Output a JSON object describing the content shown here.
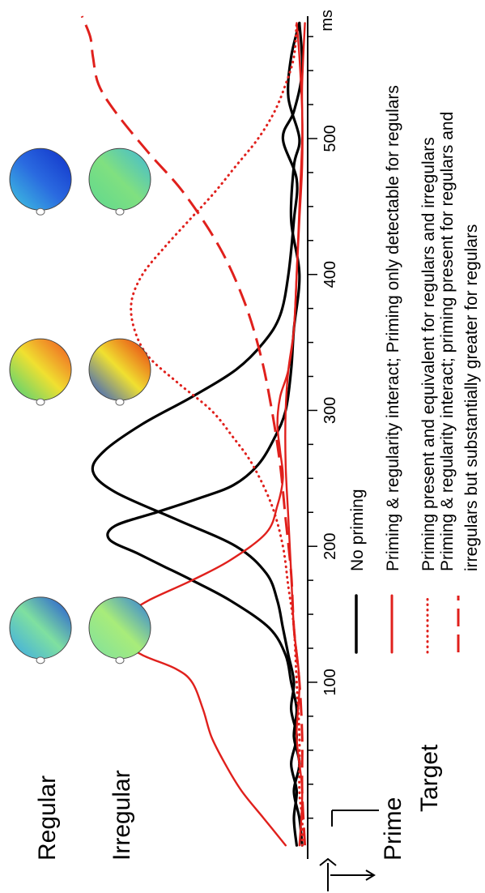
{
  "chart_data": {
    "type": "line",
    "xlabel": "ms",
    "x_ticks": [
      100,
      200,
      300,
      400,
      500
    ],
    "xlim": [
      -30,
      590
    ],
    "row_labels": {
      "regular": "Regular",
      "irregular": "Irregular"
    },
    "markers": {
      "prime": "Prime",
      "target": "Target"
    },
    "topomaps": [
      {
        "time_ms": 140,
        "condition": "Regular",
        "colors": [
          "#3aa8e8",
          "#7fe0a0",
          "#1f4fd8"
        ]
      },
      {
        "time_ms": 140,
        "condition": "Irregular",
        "colors": [
          "#7fe0a0",
          "#a8ec7a",
          "#2a7ae0"
        ]
      },
      {
        "time_ms": 330,
        "condition": "Regular",
        "colors": [
          "#40d080",
          "#f0e030",
          "#f05020"
        ]
      },
      {
        "time_ms": 330,
        "condition": "Irregular",
        "colors": [
          "#1f4fd8",
          "#f0e030",
          "#e83010"
        ]
      },
      {
        "time_ms": 470,
        "condition": "Regular",
        "colors": [
          "#40c8e0",
          "#2a6ae0",
          "#1030c8"
        ]
      },
      {
        "time_ms": 470,
        "condition": "Irregular",
        "colors": [
          "#5ed890",
          "#80e080",
          "#40b8d8"
        ]
      }
    ],
    "legend": [
      {
        "label": "No priming",
        "color": "#000000",
        "style": "solid"
      },
      {
        "label": "Priming & regularity interact; Priming only detectable for regulars",
        "color": "#e0201c",
        "style": "solid"
      },
      {
        "label": "Priming present and equivalent for regulars and irregulars",
        "color": "#e0201c",
        "style": "dotted"
      },
      {
        "label": "Priming & regularity interact; priming present for regulars and irregulars but substantially greater for regulars",
        "color": "#e0201c",
        "style": "dashed"
      }
    ],
    "series": [
      {
        "color": "#000000",
        "style": "solid",
        "width": 3.2,
        "points": [
          [
            -20,
            0.02
          ],
          [
            0,
            0.03
          ],
          [
            20,
            0.05
          ],
          [
            40,
            0.03
          ],
          [
            60,
            0.05
          ],
          [
            80,
            0.04
          ],
          [
            100,
            0.06
          ],
          [
            120,
            0.08
          ],
          [
            140,
            0.14
          ],
          [
            160,
            0.28
          ],
          [
            175,
            0.42
          ],
          [
            185,
            0.52
          ],
          [
            195,
            0.62
          ],
          [
            205,
            0.72
          ],
          [
            215,
            0.7
          ],
          [
            225,
            0.55
          ],
          [
            235,
            0.4
          ],
          [
            245,
            0.27
          ],
          [
            260,
            0.18
          ],
          [
            280,
            0.12
          ],
          [
            300,
            0.08
          ],
          [
            330,
            0.06
          ],
          [
            360,
            0.05
          ],
          [
            400,
            0.03
          ],
          [
            440,
            0.06
          ],
          [
            480,
            0.05
          ],
          [
            500,
            0.03
          ],
          [
            530,
            0.07
          ],
          [
            560,
            0.06
          ],
          [
            585,
            0.03
          ]
        ]
      },
      {
        "color": "#000000",
        "style": "solid",
        "width": 3.2,
        "points": [
          [
            -20,
            0.04
          ],
          [
            0,
            0.05
          ],
          [
            20,
            0.04
          ],
          [
            40,
            0.06
          ],
          [
            60,
            0.04
          ],
          [
            80,
            0.06
          ],
          [
            100,
            0.05
          ],
          [
            120,
            0.07
          ],
          [
            140,
            0.09
          ],
          [
            160,
            0.11
          ],
          [
            180,
            0.15
          ],
          [
            200,
            0.26
          ],
          [
            220,
            0.48
          ],
          [
            240,
            0.7
          ],
          [
            255,
            0.78
          ],
          [
            270,
            0.74
          ],
          [
            290,
            0.6
          ],
          [
            310,
            0.42
          ],
          [
            330,
            0.26
          ],
          [
            350,
            0.16
          ],
          [
            370,
            0.1
          ],
          [
            400,
            0.07
          ],
          [
            440,
            0.05
          ],
          [
            470,
            0.04
          ],
          [
            500,
            0.09
          ],
          [
            520,
            0.05
          ],
          [
            550,
            0.02
          ],
          [
            585,
            0.03
          ]
        ]
      },
      {
        "color": "#e0201c",
        "style": "solid",
        "width": 2.4,
        "points": [
          [
            -20,
            0.08
          ],
          [
            0,
            0.16
          ],
          [
            20,
            0.24
          ],
          [
            40,
            0.3
          ],
          [
            60,
            0.35
          ],
          [
            80,
            0.38
          ],
          [
            100,
            0.42
          ],
          [
            110,
            0.48
          ],
          [
            120,
            0.6
          ],
          [
            130,
            0.67
          ],
          [
            140,
            0.68
          ],
          [
            150,
            0.65
          ],
          [
            160,
            0.58
          ],
          [
            175,
            0.42
          ],
          [
            190,
            0.28
          ],
          [
            210,
            0.15
          ],
          [
            230,
            0.11
          ],
          [
            250,
            0.09
          ],
          [
            270,
            0.1
          ],
          [
            290,
            0.11
          ],
          [
            310,
            0.1
          ],
          [
            330,
            0.07
          ],
          [
            360,
            0.05
          ],
          [
            400,
            0.04
          ],
          [
            450,
            0.03
          ],
          [
            500,
            0.02
          ],
          [
            540,
            0.02
          ],
          [
            585,
            0.01
          ]
        ]
      },
      {
        "color": "#e0201c",
        "style": "solid",
        "width": 2.4,
        "points": [
          [
            -20,
            0.03
          ],
          [
            20,
            0.02
          ],
          [
            60,
            0.04
          ],
          [
            100,
            0.03
          ],
          [
            140,
            0.05
          ],
          [
            180,
            0.06
          ],
          [
            220,
            0.07
          ],
          [
            260,
            0.08
          ],
          [
            300,
            0.08
          ],
          [
            330,
            0.07
          ],
          [
            360,
            0.05
          ],
          [
            400,
            0.04
          ],
          [
            440,
            0.03
          ],
          [
            480,
            0.02
          ],
          [
            520,
            0.02
          ],
          [
            560,
            0.03
          ],
          [
            585,
            0.04
          ]
        ]
      },
      {
        "color": "#e0201c",
        "style": "dotted",
        "width": 3.0,
        "points": [
          [
            -20,
            0.02
          ],
          [
            0,
            0.02
          ],
          [
            20,
            0.03
          ],
          [
            60,
            0.03
          ],
          [
            100,
            0.04
          ],
          [
            140,
            0.05
          ],
          [
            170,
            0.07
          ],
          [
            200,
            0.09
          ],
          [
            230,
            0.13
          ],
          [
            260,
            0.2
          ],
          [
            280,
            0.27
          ],
          [
            300,
            0.35
          ],
          [
            320,
            0.47
          ],
          [
            340,
            0.58
          ],
          [
            360,
            0.63
          ],
          [
            380,
            0.64
          ],
          [
            400,
            0.6
          ],
          [
            420,
            0.52
          ],
          [
            440,
            0.43
          ],
          [
            460,
            0.34
          ],
          [
            480,
            0.26
          ],
          [
            500,
            0.18
          ],
          [
            520,
            0.12
          ],
          [
            540,
            0.08
          ],
          [
            560,
            0.05
          ],
          [
            585,
            0.04
          ]
        ]
      },
      {
        "color": "#e0201c",
        "style": "dashed",
        "width": 3.0,
        "points": [
          [
            -20,
            0.01
          ],
          [
            20,
            0.02
          ],
          [
            60,
            0.02
          ],
          [
            100,
            0.03
          ],
          [
            140,
            0.05
          ],
          [
            180,
            0.06
          ],
          [
            220,
            0.08
          ],
          [
            260,
            0.1
          ],
          [
            300,
            0.13
          ],
          [
            340,
            0.17
          ],
          [
            380,
            0.23
          ],
          [
            420,
            0.32
          ],
          [
            460,
            0.45
          ],
          [
            490,
            0.58
          ],
          [
            520,
            0.7
          ],
          [
            540,
            0.76
          ],
          [
            560,
            0.78
          ],
          [
            575,
            0.79
          ],
          [
            590,
            0.82
          ]
        ]
      }
    ]
  }
}
